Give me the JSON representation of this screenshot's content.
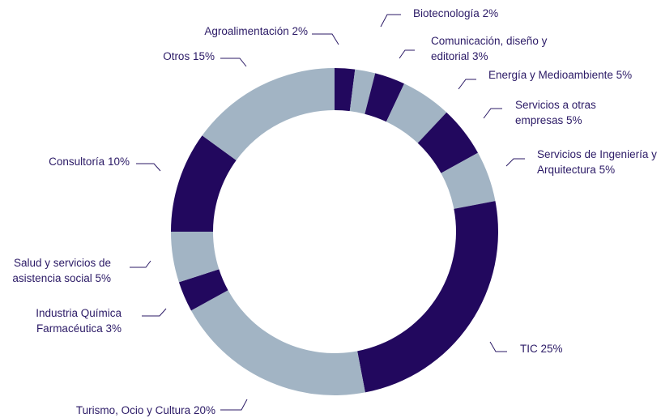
{
  "chart_data": {
    "type": "donut",
    "categories": [
      "Agroalimentación",
      "Biotecnología",
      "Comunicación, diseño y editorial",
      "Energía y Medioambiente",
      "Servicios a otras empresas",
      "Servicios de Ingeniería y Arquitectura",
      "TIC",
      "Turismo, Ocio y Cultura",
      "Industria Química Farmacéutica",
      "Salud y servicios de asistencia social",
      "Consultoría",
      "Otros"
    ],
    "values": [
      2,
      2,
      3,
      5,
      5,
      5,
      25,
      20,
      3,
      5,
      10,
      15
    ],
    "value_labels": [
      "2%",
      "2%",
      "3%",
      "5%",
      "5%",
      "5%",
      "25%",
      "20%",
      "3%",
      "5%",
      "10%",
      "15%"
    ],
    "colors": [
      "#22085e",
      "#a2b4c4",
      "#22085e",
      "#a2b4c4",
      "#22085e",
      "#a2b4c4",
      "#22085e",
      "#a2b4c4",
      "#22085e",
      "#a2b4c4",
      "#22085e",
      "#a2b4c4"
    ]
  }
}
